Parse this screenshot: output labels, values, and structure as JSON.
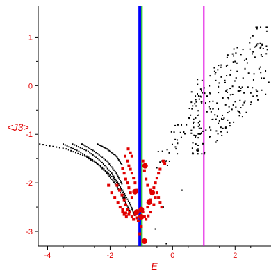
{
  "chart_data": {
    "type": "scatter",
    "title": "",
    "xlabel": "E",
    "ylabel": "<J3>",
    "xlim": [
      -4.3,
      3.15
    ],
    "ylim": [
      -3.3,
      1.65
    ],
    "x_ticks": [
      -4,
      -2,
      0,
      2
    ],
    "y_ticks": [
      -3,
      -2,
      -1,
      0,
      1
    ],
    "grid": false,
    "axis_color": "#000000",
    "tick_label_color": "#e00000",
    "vertical_lines": [
      {
        "x": -1.05,
        "color": "#0000ff"
      },
      {
        "x": -0.98,
        "color": "#00c000"
      },
      {
        "x": 1.0,
        "color": "#e000e0"
      }
    ],
    "series": [
      {
        "marker_color": "#000000",
        "marker_size": "small",
        "description_points": "dense black dot bands fanning from left, plus scattered cloud on right",
        "bands": [
          {
            "x": [
              -4.25,
              -3.4,
              -2.8,
              -2.3,
              -1.9,
              -1.6,
              -1.35,
              -1.2
            ],
            "y": [
              -1.2,
              -1.3,
              -1.45,
              -1.65,
              -1.9,
              -2.15,
              -2.45,
              -2.7
            ]
          },
          {
            "x": [
              -3.5,
              -3.0,
              -2.5,
              -2.1,
              -1.8,
              -1.55,
              -1.35
            ],
            "y": [
              -1.2,
              -1.35,
              -1.55,
              -1.8,
              -2.05,
              -2.35,
              -2.6
            ]
          },
          {
            "x": [
              -3.2,
              -2.7,
              -2.3,
              -1.95,
              -1.7,
              -1.5
            ],
            "y": [
              -1.2,
              -1.35,
              -1.55,
              -1.8,
              -2.05,
              -2.35
            ]
          },
          {
            "x": [
              -2.9,
              -2.5,
              -2.1,
              -1.8,
              -1.6
            ],
            "y": [
              -1.2,
              -1.35,
              -1.55,
              -1.8,
              -2.05
            ]
          },
          {
            "x": [
              -2.4,
              -2.1,
              -1.8,
              -1.6
            ],
            "y": [
              -1.2,
              -1.3,
              -1.45,
              -1.65
            ]
          }
        ],
        "cloud": {
          "x_range": [
            0.6,
            3.1
          ],
          "y_range": [
            -1.4,
            1.2
          ],
          "count": 230
        },
        "rising_band": {
          "x": [
            -0.4,
            -0.1,
            0.2,
            0.5,
            0.8,
            1.0
          ],
          "y": [
            -1.6,
            -1.35,
            -1.05,
            -0.7,
            -0.3,
            0.0
          ]
        },
        "lower_dots": [
          [
            -0.55,
            -2.95
          ],
          [
            -0.2,
            -3.25
          ],
          [
            -0.3,
            -2.5
          ],
          [
            0.3,
            -2.15
          ]
        ]
      },
      {
        "marker_color": "#e00000",
        "marker_size": "medium",
        "points": [
          [
            -2.05,
            -2.05
          ],
          [
            -1.95,
            -2.2
          ],
          [
            -1.85,
            -2.3
          ],
          [
            -1.75,
            -2.4
          ],
          [
            -1.68,
            -2.5
          ],
          [
            -1.6,
            -2.6
          ],
          [
            -1.55,
            -2.65
          ],
          [
            -1.48,
            -2.7
          ],
          [
            -1.78,
            -2.05
          ],
          [
            -1.7,
            -2.15
          ],
          [
            -1.62,
            -2.25
          ],
          [
            -1.55,
            -2.35
          ],
          [
            -1.5,
            -2.45
          ],
          [
            -1.45,
            -2.55
          ],
          [
            -1.38,
            -2.6
          ],
          [
            -1.6,
            -1.7
          ],
          [
            -1.55,
            -1.8
          ],
          [
            -1.5,
            -1.92
          ],
          [
            -1.45,
            -2.0
          ],
          [
            -1.4,
            -2.1
          ],
          [
            -1.35,
            -2.2
          ],
          [
            -1.3,
            -2.3
          ],
          [
            -1.52,
            -1.45
          ],
          [
            -1.45,
            -1.55
          ],
          [
            -1.4,
            -1.65
          ],
          [
            -1.35,
            -1.72
          ],
          [
            -1.3,
            -1.8
          ],
          [
            -1.25,
            -1.9
          ],
          [
            -1.2,
            -2.0
          ],
          [
            -1.15,
            -2.15
          ],
          [
            -1.42,
            -1.3
          ],
          [
            -1.35,
            -1.38
          ],
          [
            -1.3,
            -1.45
          ],
          [
            -1.6,
            -2.55
          ],
          [
            -1.5,
            -2.62
          ],
          [
            -1.4,
            -2.65
          ],
          [
            -1.3,
            -2.7
          ],
          [
            -1.25,
            -2.75
          ],
          [
            -1.2,
            -2.65
          ],
          [
            -1.15,
            -2.72
          ],
          [
            -1.1,
            -2.78
          ],
          [
            -1.05,
            -2.7
          ],
          [
            -0.95,
            -2.6
          ],
          [
            -0.9,
            -2.7
          ],
          [
            -0.85,
            -2.75
          ],
          [
            -0.8,
            -2.5
          ],
          [
            -0.75,
            -2.4
          ],
          [
            -0.7,
            -2.35
          ],
          [
            -0.65,
            -2.2
          ],
          [
            -0.6,
            -2.1
          ],
          [
            -0.55,
            -2.0
          ],
          [
            -0.5,
            -1.9
          ],
          [
            -0.45,
            -1.8
          ],
          [
            -0.4,
            -1.72
          ],
          [
            -0.55,
            -2.3
          ],
          [
            -0.6,
            -2.45
          ],
          [
            -0.7,
            -2.6
          ],
          [
            -0.78,
            -2.68
          ],
          [
            -0.95,
            -1.55
          ],
          [
            -0.9,
            -1.75
          ],
          [
            -0.85,
            -1.92
          ],
          [
            -0.8,
            -2.05
          ],
          [
            -0.72,
            -2.15
          ],
          [
            -0.5,
            -2.2
          ],
          [
            -0.45,
            -2.3
          ],
          [
            -0.4,
            -2.4
          ],
          [
            -0.35,
            -2.5
          ],
          [
            -0.3,
            -1.55
          ],
          [
            -0.25,
            -1.6
          ],
          [
            -0.95,
            -3.2
          ],
          [
            -1.05,
            -3.05
          ],
          [
            -1.0,
            -2.9
          ]
        ],
        "large_points": [
          [
            -1.2,
            -2.18
          ],
          [
            -1.15,
            -2.6
          ],
          [
            -1.0,
            -2.55
          ],
          [
            -0.88,
            -1.65
          ],
          [
            -0.75,
            -2.4
          ],
          [
            -0.65,
            -2.2
          ],
          [
            -0.9,
            -3.2
          ],
          [
            -1.0,
            -2.7
          ]
        ]
      }
    ]
  }
}
